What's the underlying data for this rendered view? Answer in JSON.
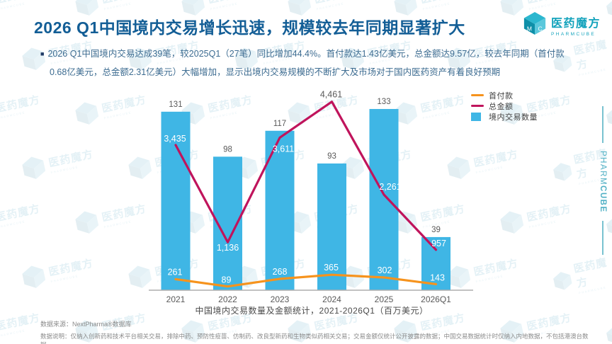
{
  "header": {
    "title": "2026 Q1中国境内交易增长迅速，规模较去年同期显著扩大"
  },
  "branding": {
    "logo_cn": "医药魔方",
    "logo_en": "PHARMCUBE",
    "side_text_regular": "PHARM",
    "side_text_bold": "CUBE",
    "watermark_cn": "医药魔方",
    "watermark_en": "PHARMCUBE",
    "cube_letters": [
      "M",
      "C"
    ]
  },
  "summary": {
    "bullet": "■",
    "text": "2026 Q1中国境内交易达成39笔，较2025Q1（27笔）同比增加44.4%。首付款达1.43亿美元，总金额达9.57亿，较去年同期（首付款0.68亿美元，总金额2.31亿美元）大幅增加，显示出境内交易规模的不断扩大及市场对于国内医药资产有着良好预期"
  },
  "chart_data": {
    "type": "bar",
    "subtype": "combo-bar-line",
    "categories": [
      "2021",
      "2022",
      "2023",
      "2024",
      "2025",
      "2026Q1"
    ],
    "series": [
      {
        "name": "首付款",
        "type": "line",
        "color": "#F6931D",
        "values": [
          261,
          89,
          268,
          365,
          302,
          143
        ]
      },
      {
        "name": "总金额",
        "type": "line",
        "color": "#C0145C",
        "values": [
          3435,
          1136,
          3611,
          4461,
          2261,
          957
        ]
      },
      {
        "name": "境内交易数量",
        "type": "bar",
        "color": "#3FB6E5",
        "values": [
          131,
          98,
          117,
          93,
          133,
          39
        ]
      }
    ],
    "caption": "中国境内交易数量及金额统计，2021-2026Q1（百万美元）",
    "value_unit": "百万美元",
    "legend_position": "top-right",
    "grid": false,
    "axes_hidden": true
  },
  "footer": {
    "source": "数据来源：NextPharma®数据库",
    "note": "数据说明：仅纳入创新药和技术平台相关交易，排除中药、预防性疫苗、仿制药、改良型新药和生物类似药相关交易；交易金额仅统计公开披露的数据；中国交易数据统计时仅纳入内地数据，不包括港澳台数据"
  },
  "colors": {
    "title_blue": "#135E96",
    "body_blue": "#3D6C91",
    "bullet_navy": "#1F3B66",
    "bar_blue": "#3FB6E5",
    "line_crimson": "#C0145C",
    "line_orange": "#F6931D",
    "label_gray": "#595959",
    "axis_gray": "#ADADAD",
    "brand_teal": "#14A3BC"
  }
}
